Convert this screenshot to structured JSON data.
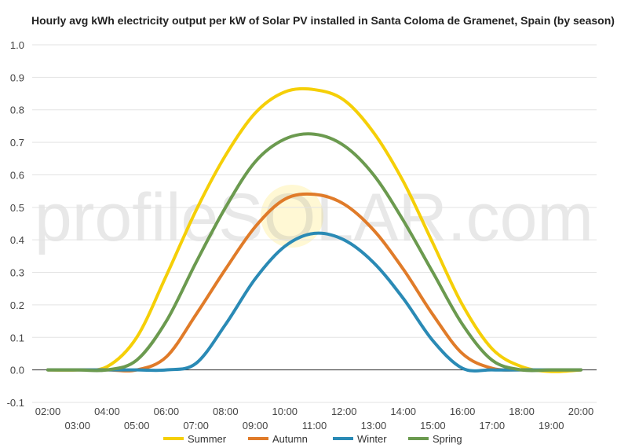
{
  "chart_data": {
    "type": "line",
    "title": "Hourly avg kWh electricity output per kW of Solar PV installed in Santa Coloma de Gramenet, Spain (by season)",
    "xlabel": "",
    "ylabel": "",
    "ylim": [
      -0.1,
      1.0
    ],
    "yticks": [
      "-0.1",
      "0.0",
      "0.1",
      "0.2",
      "0.3",
      "0.4",
      "0.5",
      "0.6",
      "0.7",
      "0.8",
      "0.9",
      "1.0"
    ],
    "x": [
      "02:00",
      "03:00",
      "04:00",
      "05:00",
      "06:00",
      "07:00",
      "08:00",
      "09:00",
      "10:00",
      "11:00",
      "12:00",
      "13:00",
      "14:00",
      "15:00",
      "16:00",
      "17:00",
      "18:00",
      "19:00",
      "20:00"
    ],
    "grid": true,
    "legend": "bottom",
    "watermark": "profileSOLAR.com",
    "series": [
      {
        "name": "Summer",
        "color": "#f5cf07",
        "values": [
          0.0,
          0.0,
          0.01,
          0.1,
          0.29,
          0.49,
          0.66,
          0.79,
          0.855,
          0.862,
          0.83,
          0.73,
          0.58,
          0.39,
          0.2,
          0.065,
          0.01,
          -0.005,
          0.0
        ]
      },
      {
        "name": "Autumn",
        "color": "#e07b29",
        "values": [
          0.0,
          0.0,
          0.0,
          0.0,
          0.04,
          0.17,
          0.31,
          0.44,
          0.525,
          0.54,
          0.51,
          0.43,
          0.31,
          0.17,
          0.05,
          0.005,
          0.0,
          0.0,
          0.0
        ]
      },
      {
        "name": "Winter",
        "color": "#2a8ab5",
        "values": [
          0.0,
          0.0,
          0.0,
          0.0,
          0.0,
          0.02,
          0.14,
          0.28,
          0.38,
          0.42,
          0.4,
          0.33,
          0.22,
          0.09,
          0.005,
          0.0,
          0.0,
          0.0,
          0.0
        ]
      },
      {
        "name": "Spring",
        "color": "#6b9a4f",
        "values": [
          0.0,
          0.0,
          0.0,
          0.03,
          0.15,
          0.33,
          0.5,
          0.64,
          0.71,
          0.725,
          0.69,
          0.6,
          0.46,
          0.3,
          0.14,
          0.03,
          0.0,
          0.0,
          0.0
        ]
      }
    ]
  }
}
